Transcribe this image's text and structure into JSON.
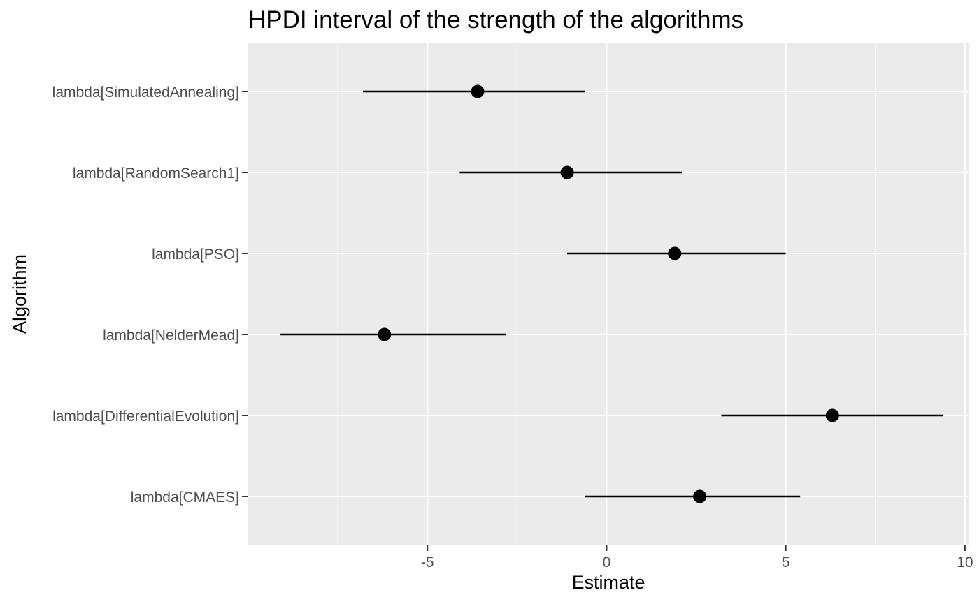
{
  "chart_data": {
    "type": "pointrange",
    "title": "HPDI interval of the strength of the algorithms",
    "xlabel": "Estimate",
    "ylabel": "Algorithm",
    "xlim": [
      -10.0,
      10.1
    ],
    "x_ticks": [
      -5,
      0,
      5,
      10
    ],
    "x_tick_labels": [
      "-5",
      "0",
      "5",
      "10"
    ],
    "grid": true,
    "colors": {
      "panel": "#ebebeb",
      "grid": "#ffffff",
      "mark": "#000000",
      "tick_label": "#4d4d4d"
    },
    "categories": [
      "lambda[SimulatedAnnealing]",
      "lambda[RandomSearch1]",
      "lambda[PSO]",
      "lambda[NelderMead]",
      "lambda[DifferentialEvolution]",
      "lambda[CMAES]"
    ],
    "series": [
      {
        "estimate": [
          -3.6,
          -1.1,
          1.9,
          -6.2,
          6.3,
          2.6
        ],
        "lower": [
          -6.8,
          -4.1,
          -1.1,
          -9.1,
          3.2,
          -0.6
        ],
        "upper": [
          -0.6,
          2.1,
          5.0,
          -2.8,
          9.4,
          5.4
        ]
      }
    ]
  }
}
